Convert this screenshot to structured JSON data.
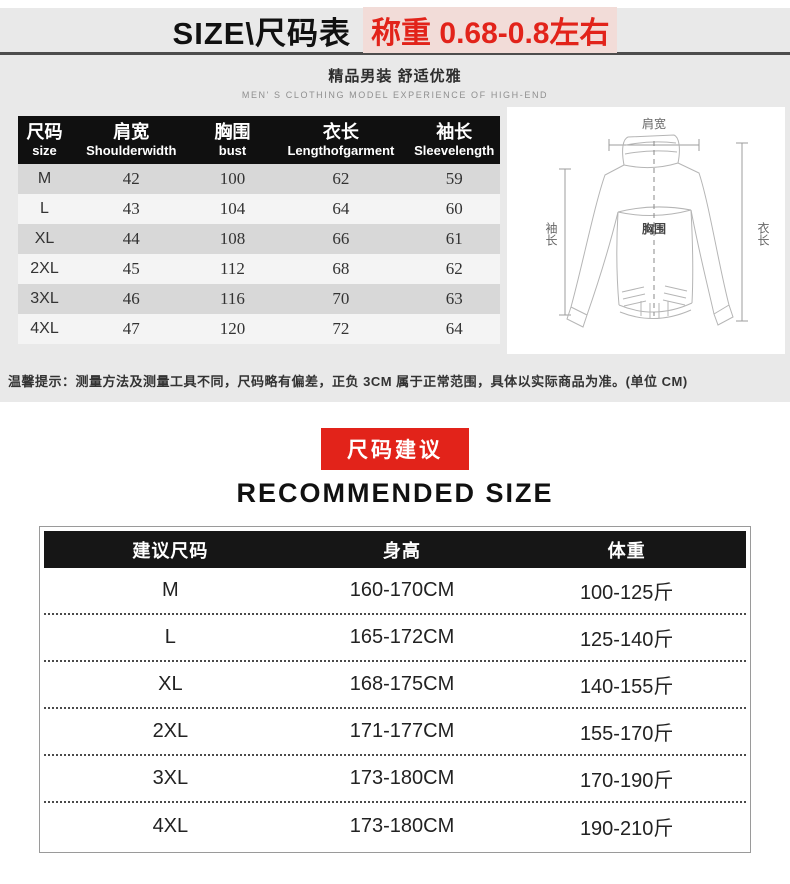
{
  "header": {
    "title_black": "SIZE\\尺码表",
    "title_red": "称重 0.68-0.8左右",
    "subtitle_cn": "精品男装 舒适优雅",
    "subtitle_en": "MEN' S CLOTHING MODEL EXPERIENCE OF HIGH-END"
  },
  "size_table": {
    "headers": [
      {
        "cn": "尺码",
        "en": "size"
      },
      {
        "cn": "肩宽",
        "en": "Shoulderwidth"
      },
      {
        "cn": "胸围",
        "en": "bust"
      },
      {
        "cn": "衣长",
        "en": "Lengthofgarment"
      },
      {
        "cn": "袖长",
        "en": "Sleevelength"
      }
    ],
    "rows": [
      [
        "M",
        "42",
        "100",
        "62",
        "59"
      ],
      [
        "L",
        "43",
        "104",
        "64",
        "60"
      ],
      [
        "XL",
        "44",
        "108",
        "66",
        "61"
      ],
      [
        "2XL",
        "45",
        "112",
        "68",
        "62"
      ],
      [
        "3XL",
        "46",
        "116",
        "70",
        "63"
      ],
      [
        "4XL",
        "47",
        "120",
        "72",
        "64"
      ]
    ]
  },
  "diagram": {
    "shoulder_label": "肩宽",
    "sleeve_label": "袖长",
    "bust_label": "胸围",
    "length_label": "衣长"
  },
  "note": "温馨提示：测量方法及测量工具不同，尺码略有偏差，正负 3CM 属于正常范围，具体以实际商品为准。(单位 CM)",
  "recommend": {
    "badge": "尺码建议",
    "title": "RECOMMENDED SIZE",
    "headers": [
      "建议尺码",
      "身高",
      "体重"
    ],
    "rows": [
      [
        "M",
        "160-170CM",
        "100-125斤"
      ],
      [
        "L",
        "165-172CM",
        "125-140斤"
      ],
      [
        "XL",
        "168-175CM",
        "140-155斤"
      ],
      [
        "2XL",
        "171-177CM",
        "155-170斤"
      ],
      [
        "3XL",
        "173-180CM",
        "170-190斤"
      ],
      [
        "4XL",
        "173-180CM",
        "190-210斤"
      ]
    ]
  },
  "colors": {
    "accent_red": "#e2231a",
    "header_black": "#101010",
    "section_gray": "#e9e9e9"
  }
}
